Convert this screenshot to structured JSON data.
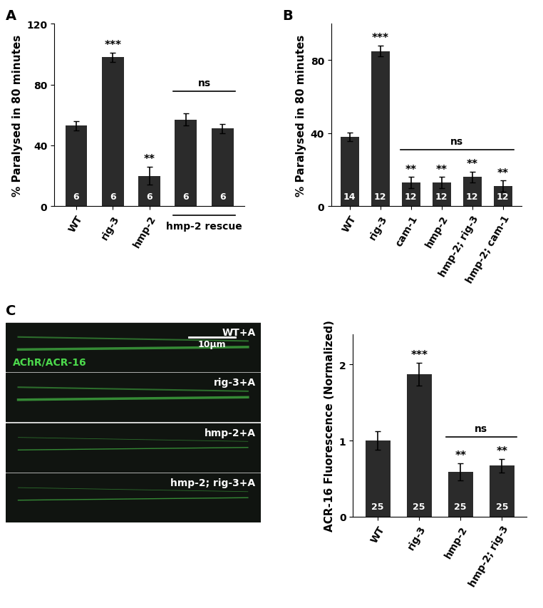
{
  "chart_data": [
    {
      "type": "bar",
      "panel": "A",
      "y_label": "% Paralysed in 80 minutes",
      "categories": [
        "WT",
        "rig-3",
        "hmp-2",
        null,
        null
      ],
      "values": [
        53,
        98,
        20,
        57,
        51
      ],
      "errors": [
        3,
        3,
        6,
        4,
        3
      ],
      "n": [
        6,
        6,
        6,
        6,
        6
      ],
      "significance": [
        "",
        "***",
        "**",
        "",
        ""
      ],
      "brackets": [
        {
          "label": "ns",
          "first": 3,
          "last": 4
        }
      ],
      "group_labels": [
        {
          "label": "hmp-2 rescue",
          "first": 3,
          "last": 4
        }
      ],
      "color": "#2b2b2b",
      "ylim": [
        0,
        120
      ],
      "yticks": [
        0,
        40,
        80,
        120
      ]
    },
    {
      "type": "bar",
      "panel": "B",
      "y_label": "% Paralysed in 80 minutes",
      "categories": [
        "WT",
        "rig-3",
        "cam-1",
        "hmp-2",
        "hmp-2; rig-3",
        "hmp-2; cam-1"
      ],
      "values": [
        38,
        85,
        13,
        13,
        16,
        11
      ],
      "errors": [
        2.5,
        3,
        3,
        3,
        3,
        3
      ],
      "n": [
        14,
        12,
        12,
        12,
        12,
        12
      ],
      "significance": [
        "",
        "***",
        "**",
        "**",
        "**",
        "**"
      ],
      "brackets": [
        {
          "label": "ns",
          "first": 2,
          "last": 5
        }
      ],
      "color": "#2b2b2b",
      "ylim": [
        0,
        100
      ],
      "yticks": [
        0,
        40,
        80
      ]
    },
    {
      "type": "bar",
      "panel": "C",
      "y_label": "ACR-16 Fluorescence (Normalized)",
      "categories": [
        "WT",
        "rig-3",
        "hmp-2",
        "hmp-2; rig-3"
      ],
      "values": [
        1.0,
        1.87,
        0.59,
        0.67
      ],
      "errors": [
        0.12,
        0.15,
        0.11,
        0.09
      ],
      "n": [
        25,
        25,
        25,
        25
      ],
      "significance": [
        "",
        "***",
        "**",
        "**"
      ],
      "brackets": [
        {
          "label": "ns",
          "first": 2,
          "last": 3
        }
      ],
      "color": "#2b2b2b",
      "ylim": [
        0,
        2.4
      ],
      "yticks": [
        0,
        1,
        2
      ]
    }
  ],
  "micrograph": {
    "stain": "AChR/ACR-16",
    "scale_bar": "10μm",
    "labels": [
      "WT+A",
      "rig-3+A",
      "hmp-2+A",
      "hmp-2; rig-3+A"
    ]
  }
}
